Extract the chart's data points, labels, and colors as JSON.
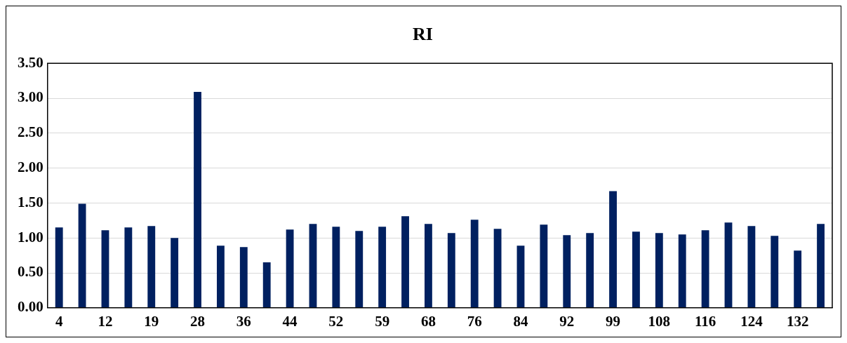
{
  "chart_data": {
    "type": "bar",
    "title": "RI",
    "categories": [
      "4",
      null,
      "12",
      null,
      "19",
      null,
      "28",
      null,
      "36",
      null,
      "44",
      null,
      "52",
      null,
      "59",
      null,
      "68",
      null,
      "76",
      null,
      "84",
      null,
      "92",
      null,
      "99",
      null,
      "108",
      null,
      "116",
      null,
      "124",
      null,
      "132",
      null
    ],
    "values": [
      1.15,
      1.49,
      1.11,
      1.15,
      1.17,
      1.0,
      3.09,
      0.89,
      0.87,
      0.65,
      1.12,
      1.2,
      1.16,
      1.1,
      1.16,
      1.31,
      1.2,
      1.07,
      1.26,
      1.13,
      0.89,
      1.19,
      1.04,
      1.07,
      1.67,
      1.09,
      1.07,
      1.05,
      1.11,
      1.22,
      1.17,
      1.03,
      0.82,
      1.2
    ],
    "color": "#002060",
    "ylim": [
      0,
      3.5
    ],
    "yticks": [
      {
        "value": 0,
        "label": "0.00"
      },
      {
        "value": 0.5,
        "label": "0.50"
      },
      {
        "value": 1,
        "label": "1.00"
      },
      {
        "value": 1.5,
        "label": "1.50"
      },
      {
        "value": 2,
        "label": "2.00"
      },
      {
        "value": 2.5,
        "label": "2.50"
      },
      {
        "value": 3,
        "label": "3.00"
      },
      {
        "value": 3.5,
        "label": "3.50"
      }
    ],
    "grid": "y",
    "legend": false
  }
}
